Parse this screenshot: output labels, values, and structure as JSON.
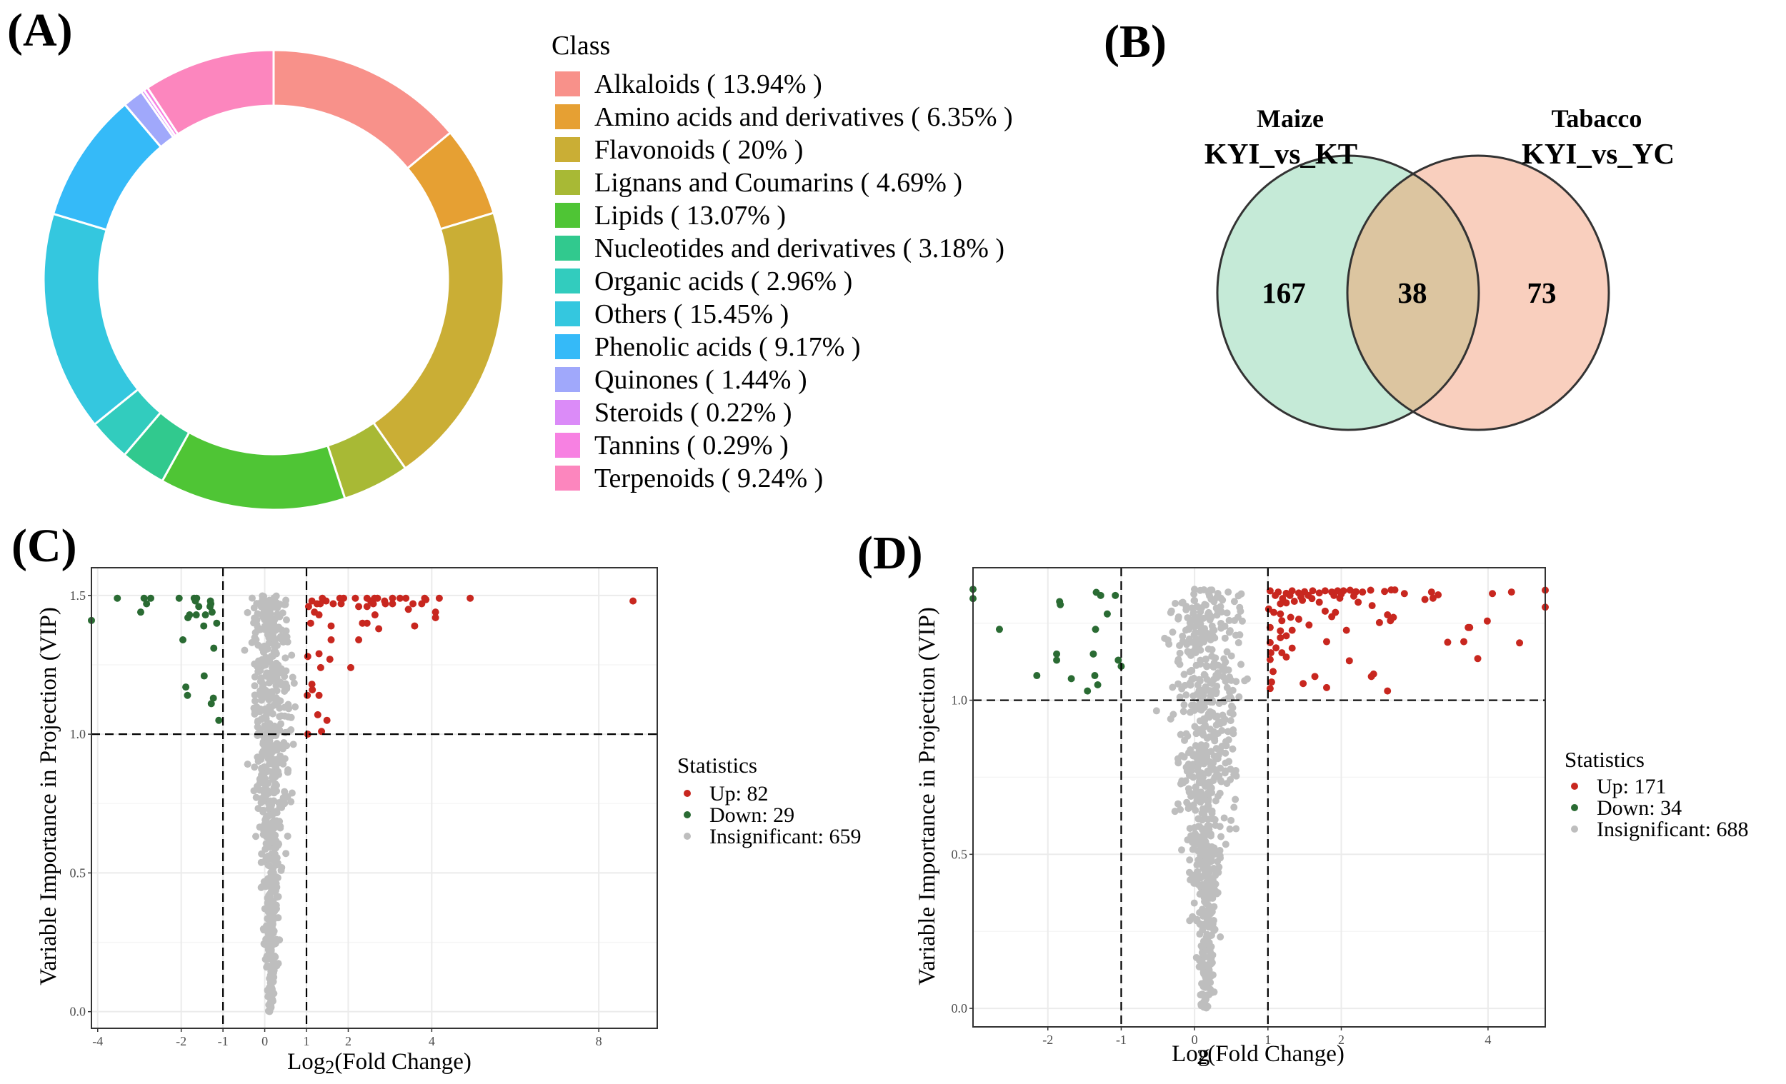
{
  "panels": {
    "a": "(A)",
    "b": "(B)",
    "c": "(C)",
    "d": "(D)"
  },
  "chart_data": [
    {
      "type": "pie",
      "donut": true,
      "legend_title": "Class",
      "legend_position": "right",
      "slices": [
        {
          "name": "Alkaloids",
          "label": "Alkaloids ( 13.94% )",
          "value": 13.94,
          "color": "#F8918A"
        },
        {
          "name": "Amino acids and derivatives",
          "label": "Amino acids and derivatives ( 6.35% )",
          "value": 6.35,
          "color": "#E6A033"
        },
        {
          "name": "Flavonoids",
          "label": "Flavonoids ( 20% )",
          "value": 20,
          "color": "#CAAE35"
        },
        {
          "name": "Lignans and Coumarins",
          "label": "Lignans and Coumarins ( 4.69% )",
          "value": 4.69,
          "color": "#A8B935"
        },
        {
          "name": "Lipids",
          "label": "Lipids ( 13.07% )",
          "value": 13.07,
          "color": "#4FC535"
        },
        {
          "name": "Nucleotides and derivatives",
          "label": "Nucleotides and derivatives ( 3.18% )",
          "value": 3.18,
          "color": "#31C98E"
        },
        {
          "name": "Organic acids",
          "label": "Organic acids ( 2.96% )",
          "value": 2.96,
          "color": "#32CCBE"
        },
        {
          "name": "Others",
          "label": "Others ( 15.45% )",
          "value": 15.45,
          "color": "#34C7DF"
        },
        {
          "name": "Phenolic acids",
          "label": "Phenolic acids ( 9.17% )",
          "value": 9.17,
          "color": "#35BAF8"
        },
        {
          "name": "Quinones",
          "label": "Quinones ( 1.44% )",
          "value": 1.44,
          "color": "#A0A8FB"
        },
        {
          "name": "Steroids",
          "label": "Steroids ( 0.22% )",
          "value": 0.22,
          "color": "#DB8BF8"
        },
        {
          "name": "Tannins",
          "label": "Tannins ( 0.29% )",
          "value": 0.29,
          "color": "#F781E2"
        },
        {
          "name": "Terpenoids",
          "label": "Terpenoids ( 9.24% )",
          "value": 9.24,
          "color": "#FC86BE"
        }
      ]
    },
    {
      "type": "venn",
      "sets": [
        {
          "title": "Maize",
          "subtitle": "KYI_vs_KT",
          "only": "167",
          "color": "#C5EAD7"
        },
        {
          "title": "Tabacco",
          "subtitle": "KYI_vs_YC",
          "only": "73",
          "color": "#F9CFBE"
        }
      ],
      "intersection": "38",
      "intersection_color": "#DCC5A0"
    },
    {
      "type": "scatter",
      "xlabel": {
        "main": "Log",
        "sub": "2",
        "rest": "(Fold Change)"
      },
      "ylabel": "Variable Importance in Projection (VIP)",
      "xlim": [
        -4.15,
        9.4
      ],
      "ylim": [
        -0.06,
        1.6
      ],
      "xticks": [
        -4,
        -2,
        -1,
        0,
        1,
        2,
        4,
        8
      ],
      "yticks": [
        0.0,
        0.5,
        1.0,
        1.5
      ],
      "thresholds": {
        "x": [
          -1,
          1
        ],
        "y": 1.0
      },
      "grid": true,
      "legend_title": "Statistics",
      "legend_position": "right",
      "series": [
        {
          "name": "Up",
          "label": "Up: 82",
          "count": 82,
          "color": "#C8271F",
          "points": [
            [
              8.82,
              1.48
            ],
            [
              4.92,
              1.49
            ],
            [
              4.18,
              1.49
            ],
            [
              3.83,
              1.49
            ],
            [
              3.86,
              1.485
            ],
            [
              3.38,
              1.49
            ],
            [
              3.24,
              1.49
            ],
            [
              3.06,
              1.49
            ],
            [
              2.87,
              1.48
            ],
            [
              2.63,
              1.49
            ],
            [
              2.54,
              1.48
            ],
            [
              2.45,
              1.49
            ],
            [
              2.17,
              1.49
            ],
            [
              1.89,
              1.49
            ],
            [
              1.8,
              1.49
            ],
            [
              1.83,
              1.47
            ],
            [
              1.64,
              1.47
            ],
            [
              1.47,
              1.48
            ],
            [
              1.38,
              1.49
            ],
            [
              1.33,
              1.47
            ],
            [
              1.13,
              1.48
            ],
            [
              1.05,
              1.46
            ],
            [
              1.19,
              1.44
            ],
            [
              1.3,
              1.43
            ],
            [
              1.1,
              1.4
            ],
            [
              1.59,
              1.39
            ],
            [
              2.34,
              1.4
            ],
            [
              2.45,
              1.4
            ],
            [
              2.64,
              1.43
            ],
            [
              2.45,
              1.46
            ],
            [
              2.25,
              1.46
            ],
            [
              2.73,
              1.38
            ],
            [
              3.59,
              1.39
            ],
            [
              3.44,
              1.45
            ],
            [
              3.55,
              1.47
            ],
            [
              3.76,
              1.47
            ],
            [
              4.09,
              1.44
            ],
            [
              4.09,
              1.42
            ],
            [
              2.89,
              1.47
            ],
            [
              3.06,
              1.47
            ],
            [
              2.25,
              1.34
            ],
            [
              1.59,
              1.34
            ],
            [
              1.3,
              1.29
            ],
            [
              1.03,
              1.28
            ],
            [
              1.56,
              1.27
            ],
            [
              2.06,
              1.24
            ],
            [
              1.34,
              1.24
            ],
            [
              1.13,
              1.18
            ],
            [
              1.14,
              1.16
            ],
            [
              1.3,
              1.14
            ],
            [
              1.02,
              1.14
            ],
            [
              1.27,
              1.07
            ],
            [
              1.49,
              1.05
            ],
            [
              1.36,
              1.01
            ],
            [
              1.03,
              1.0
            ],
            [
              2.7,
              1.49
            ],
            [
              2.6,
              1.47
            ],
            [
              1.25,
              1.47
            ]
          ]
        },
        {
          "name": "Down",
          "label": "Down: 29",
          "count": 29,
          "color": "#2A6B33",
          "points": [
            [
              -4.15,
              1.41
            ],
            [
              -3.53,
              1.49
            ],
            [
              -2.89,
              1.49
            ],
            [
              -2.73,
              1.49
            ],
            [
              -2.83,
              1.47
            ],
            [
              -2.97,
              1.44
            ],
            [
              -2.05,
              1.49
            ],
            [
              -1.69,
              1.49
            ],
            [
              -1.63,
              1.49
            ],
            [
              -1.58,
              1.46
            ],
            [
              -1.8,
              1.43
            ],
            [
              -1.64,
              1.43
            ],
            [
              -1.42,
              1.43
            ],
            [
              -1.26,
              1.44
            ],
            [
              -1.29,
              1.47
            ],
            [
              -1.31,
              1.46
            ],
            [
              -1.46,
              1.39
            ],
            [
              -1.15,
              1.4
            ],
            [
              -1.96,
              1.34
            ],
            [
              -1.22,
              1.31
            ],
            [
              -1.45,
              1.21
            ],
            [
              -1.89,
              1.17
            ],
            [
              -1.85,
              1.14
            ],
            [
              -1.23,
              1.13
            ],
            [
              -1.28,
              1.11
            ],
            [
              -1.1,
              1.05
            ],
            [
              -1.84,
              1.42
            ],
            [
              -1.66,
              1.48
            ],
            [
              -1.3,
              1.48
            ]
          ]
        },
        {
          "name": "Insignificant",
          "label": "Insignificant: 659",
          "count": 659,
          "color": "#BEBEBE",
          "y_max": 1.5
        }
      ]
    },
    {
      "type": "scatter",
      "xlabel": {
        "main": "Log",
        "sub": "2",
        "rest": "(Fold Change)"
      },
      "ylabel": "Variable Importance in Projection (VIP)",
      "xlim": [
        -3.02,
        4.78
      ],
      "ylim": [
        -0.06,
        1.43
      ],
      "xticks": [
        -2,
        -1,
        0,
        1,
        2,
        4
      ],
      "yticks": [
        0.0,
        0.5,
        1.0
      ],
      "thresholds": {
        "x": [
          -1,
          1
        ],
        "y": 1.0
      },
      "grid": true,
      "legend_title": "Statistics",
      "legend_position": "right",
      "series": [
        {
          "name": "Up",
          "label": "Up: 171",
          "count": 171,
          "color": "#C8271F",
          "points": [
            [
              1.03,
              1.355
            ],
            [
              1.14,
              1.351
            ],
            [
              1.25,
              1.347
            ],
            [
              1.33,
              1.355
            ],
            [
              1.42,
              1.348
            ],
            [
              1.5,
              1.352
            ],
            [
              1.61,
              1.355
            ],
            [
              1.7,
              1.348
            ],
            [
              1.78,
              1.355
            ],
            [
              1.87,
              1.351
            ],
            [
              1.95,
              1.355
            ],
            [
              2.03,
              1.355
            ],
            [
              2.12,
              1.357
            ],
            [
              2.2,
              1.352
            ],
            [
              2.29,
              1.351
            ],
            [
              2.4,
              1.357
            ],
            [
              2.59,
              1.353
            ],
            [
              2.68,
              1.358
            ],
            [
              2.73,
              1.358
            ],
            [
              2.86,
              1.346
            ],
            [
              3.23,
              1.351
            ],
            [
              3.32,
              1.342
            ],
            [
              3.14,
              1.327
            ],
            [
              3.25,
              1.331
            ],
            [
              4.06,
              1.346
            ],
            [
              4.32,
              1.351
            ],
            [
              4.78,
              1.357
            ],
            [
              4.78,
              1.302
            ],
            [
              3.99,
              1.257
            ],
            [
              3.73,
              1.236
            ],
            [
              3.75,
              1.236
            ],
            [
              3.45,
              1.188
            ],
            [
              3.67,
              1.19
            ],
            [
              4.43,
              1.186
            ],
            [
              3.86,
              1.135
            ],
            [
              2.63,
              1.277
            ],
            [
              2.67,
              1.258
            ],
            [
              2.71,
              1.269
            ],
            [
              2.52,
              1.252
            ],
            [
              2.42,
              1.307
            ],
            [
              2.41,
              1.077
            ],
            [
              2.44,
              1.085
            ],
            [
              2.63,
              1.03
            ],
            [
              2.11,
              1.128
            ],
            [
              2.07,
              1.227
            ],
            [
              1.8,
              1.19
            ],
            [
              1.8,
              1.041
            ],
            [
              1.64,
              1.077
            ],
            [
              1.48,
              1.054
            ],
            [
              1.56,
              1.244
            ],
            [
              1.87,
              1.271
            ],
            [
              1.92,
              1.285
            ],
            [
              1.78,
              1.289
            ],
            [
              2.23,
              1.318
            ],
            [
              2.17,
              1.338
            ],
            [
              1.98,
              1.331
            ],
            [
              1.7,
              1.318
            ],
            [
              1.47,
              1.324
            ],
            [
              1.36,
              1.321
            ],
            [
              1.25,
              1.316
            ],
            [
              1.17,
              1.313
            ],
            [
              1.08,
              1.285
            ],
            [
              1.17,
              1.28
            ],
            [
              1.19,
              1.258
            ],
            [
              1.31,
              1.269
            ],
            [
              1.42,
              1.263
            ],
            [
              1.17,
              1.225
            ],
            [
              1.17,
              1.203
            ],
            [
              1.25,
              1.209
            ],
            [
              1.33,
              1.227
            ],
            [
              1.03,
              1.236
            ],
            [
              1.03,
              1.187
            ],
            [
              1.11,
              1.17
            ],
            [
              1.04,
              1.154
            ],
            [
              1.19,
              1.154
            ],
            [
              1.25,
              1.14
            ],
            [
              1.33,
              1.169
            ],
            [
              1.03,
              1.132
            ],
            [
              1.07,
              1.093
            ],
            [
              1.05,
              1.059
            ],
            [
              1.03,
              1.038
            ],
            [
              1.01,
              1.296
            ],
            [
              1.1,
              1.34
            ],
            [
              1.3,
              1.34
            ],
            [
              1.55,
              1.34
            ],
            [
              1.9,
              1.34
            ],
            [
              1.6,
              1.33
            ],
            [
              2.0,
              1.345
            ],
            [
              1.2,
              1.33
            ],
            [
              1.45,
              1.335
            ]
          ]
        },
        {
          "name": "Down",
          "label": "Down: 34",
          "count": 34,
          "color": "#2A6B33",
          "points": [
            [
              -3.02,
              1.36
            ],
            [
              -3.02,
              1.33
            ],
            [
              -2.66,
              1.23
            ],
            [
              -2.15,
              1.08
            ],
            [
              -1.88,
              1.15
            ],
            [
              -1.88,
              1.13
            ],
            [
              -1.84,
              1.32
            ],
            [
              -1.83,
              1.31
            ],
            [
              -1.68,
              1.07
            ],
            [
              -1.46,
              1.03
            ],
            [
              -1.38,
              1.15
            ],
            [
              -1.36,
              1.08
            ],
            [
              -1.32,
              1.05
            ],
            [
              -1.35,
              1.23
            ],
            [
              -1.34,
              1.35
            ],
            [
              -1.28,
              1.34
            ],
            [
              -1.19,
              1.28
            ],
            [
              -1.08,
              1.34
            ],
            [
              -1.04,
              1.13
            ],
            [
              -1.0,
              1.11
            ]
          ]
        },
        {
          "name": "Insignificant",
          "label": "Insignificant: 688",
          "count": 688,
          "color": "#BEBEBE",
          "y_max": 1.36
        }
      ]
    }
  ]
}
